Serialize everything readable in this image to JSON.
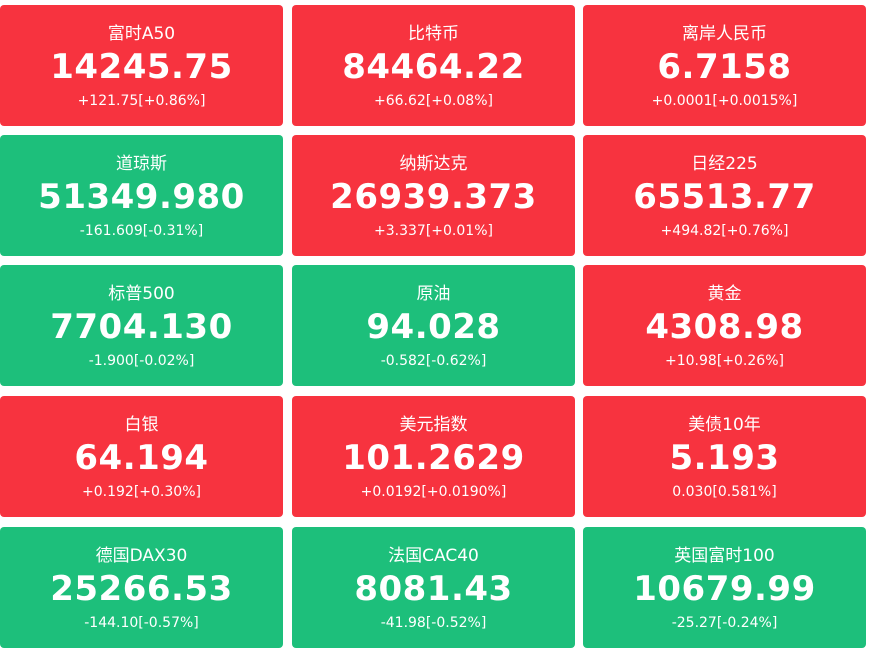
{
  "tiles": [
    {
      "name": "富时A50",
      "price": "14245.75",
      "change": "+121.75[+0.86%]",
      "color": "#f7333f"
    },
    {
      "name": "比特币",
      "price": "84464.22",
      "change": "+66.62[+0.08%]",
      "color": "#f7333f"
    },
    {
      "name": "离岸人民币",
      "price": "6.7158",
      "change": "+0.0001[+0.0015%]",
      "color": "#f7333f"
    },
    {
      "name": "道琼斯",
      "price": "51349.980",
      "change": "-161.609[-0.31%]",
      "color": "#1dbf7b"
    },
    {
      "name": "纳斯达克",
      "price": "26939.373",
      "change": "+3.337[+0.01%]",
      "color": "#f7333f"
    },
    {
      "name": "日经225",
      "price": "65513.77",
      "change": "+494.82[+0.76%]",
      "color": "#f7333f"
    },
    {
      "name": "标普500",
      "price": "7704.130",
      "change": "-1.900[-0.02%]",
      "color": "#1dbf7b"
    },
    {
      "name": "原油",
      "price": "94.028",
      "change": "-0.582[-0.62%]",
      "color": "#1dbf7b"
    },
    {
      "name": "黄金",
      "price": "4308.98",
      "change": "+10.98[+0.26%]",
      "color": "#f7333f"
    },
    {
      "name": "白银",
      "price": "64.194",
      "change": "+0.192[+0.30%]",
      "color": "#f7333f"
    },
    {
      "name": "美元指数",
      "price": "101.2629",
      "change": "+0.0192[+0.0190%]",
      "color": "#f7333f"
    },
    {
      "name": "美债10年",
      "price": "5.193",
      "change": "0.030[0.581%]",
      "color": "#f7333f"
    },
    {
      "name": "德国DAX30",
      "price": "25266.53",
      "change": "-144.10[-0.57%]",
      "color": "#1dbf7b"
    },
    {
      "name": "法国CAC40",
      "price": "8081.43",
      "change": "-41.98[-0.52%]",
      "color": "#1dbf7b"
    },
    {
      "name": "英国富时100",
      "price": "10679.99",
      "change": "-25.27[-0.24%]",
      "color": "#1dbf7b"
    }
  ]
}
